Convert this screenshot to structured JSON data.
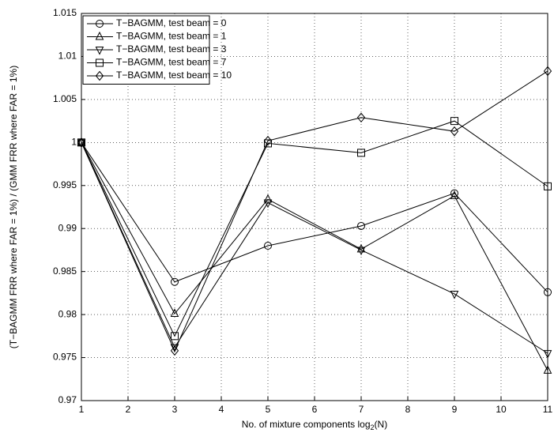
{
  "chart_data": {
    "type": "line",
    "xlabel": [
      "No. of mixture components log",
      "2",
      "(N)"
    ],
    "ylabel": "(T−BAGMM FRR where FAR = 1%) / (GMM FRR where FAR = 1%)",
    "x": [
      1,
      3,
      5,
      7,
      9,
      11
    ],
    "series": [
      {
        "name": "T−BAGMM, test beam = 0",
        "color": "#000000",
        "marker": "circle",
        "values": [
          1,
          0.9838,
          0.988,
          0.9903,
          0.9941,
          0.9826
        ]
      },
      {
        "name": "T−BAGMM, test beam = 1",
        "color": "#000000",
        "marker": "triangle-up",
        "values": [
          1,
          0.9801,
          0.9934,
          0.9876,
          0.9938,
          0.9735
        ]
      },
      {
        "name": "T−BAGMM, test beam = 3",
        "color": "#000000",
        "marker": "triangle-down",
        "values": [
          1,
          0.9762,
          0.993,
          0.9875,
          0.9824,
          0.9755
        ]
      },
      {
        "name": "T−BAGMM, test beam = 7",
        "color": "#000000",
        "marker": "square",
        "values": [
          1,
          0.9775,
          0.9999,
          0.9988,
          1.0025,
          0.9949
        ]
      },
      {
        "name": "T−BAGMM, test beam = 10",
        "color": "#000000",
        "marker": "diamond",
        "values": [
          1,
          0.9758,
          1.0002,
          1.0029,
          1.0013,
          1.0083
        ]
      }
    ],
    "xlim": [
      1,
      11
    ],
    "xticks": [
      1,
      2,
      3,
      4,
      5,
      6,
      7,
      8,
      9,
      10,
      11
    ],
    "ylim": [
      0.97,
      1.015
    ],
    "yticks": [
      0.97,
      0.975,
      0.98,
      0.985,
      0.99,
      0.995,
      1,
      1.005,
      1.01,
      1.015
    ],
    "grid": true,
    "legend": "upper-left"
  }
}
